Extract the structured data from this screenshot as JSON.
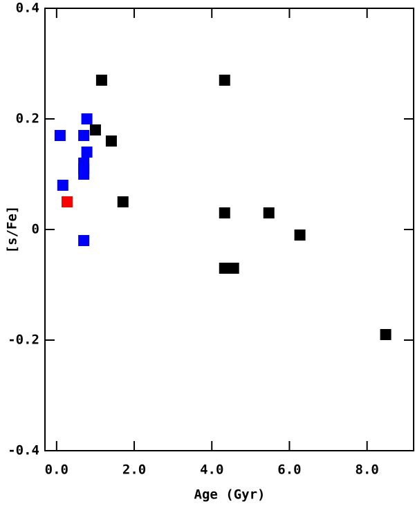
{
  "chart_data": {
    "type": "scatter",
    "x_label": "Age (Gyr)",
    "y_label": "[s/Fe]",
    "xlim": [
      -0.3,
      9.2
    ],
    "ylim": [
      -0.4,
      0.4
    ],
    "xticks": [
      {
        "value": 0,
        "label": "0.0"
      },
      {
        "value": 2,
        "label": "2.0"
      },
      {
        "value": 4,
        "label": "4.0"
      },
      {
        "value": 6,
        "label": "6.0"
      },
      {
        "value": 8,
        "label": "8.0"
      }
    ],
    "yticks": [
      -0.4,
      -0.2,
      0,
      0.2,
      0.4
    ],
    "series": [
      {
        "color": "#0000ff",
        "x": [
          0.09,
          0.16,
          0.7,
          0.78,
          0.78,
          0.7,
          0.7,
          0.7,
          0.7
        ],
        "values": [
          0.17,
          0.08,
          0.17,
          0.2,
          0.14,
          0.12,
          0.11,
          0.1,
          -0.02
        ]
      },
      {
        "color": "#ff0000",
        "x": [
          0.27
        ],
        "values": [
          0.05
        ]
      },
      {
        "color": "#000000",
        "x": [
          1.16,
          1.0,
          1.41,
          1.71,
          4.33,
          4.33,
          4.33,
          4.56,
          5.47,
          6.27,
          8.48
        ],
        "values": [
          0.27,
          0.18,
          0.16,
          0.05,
          0.27,
          0.03,
          -0.07,
          -0.07,
          0.03,
          -0.01,
          -0.19
        ]
      }
    ]
  }
}
